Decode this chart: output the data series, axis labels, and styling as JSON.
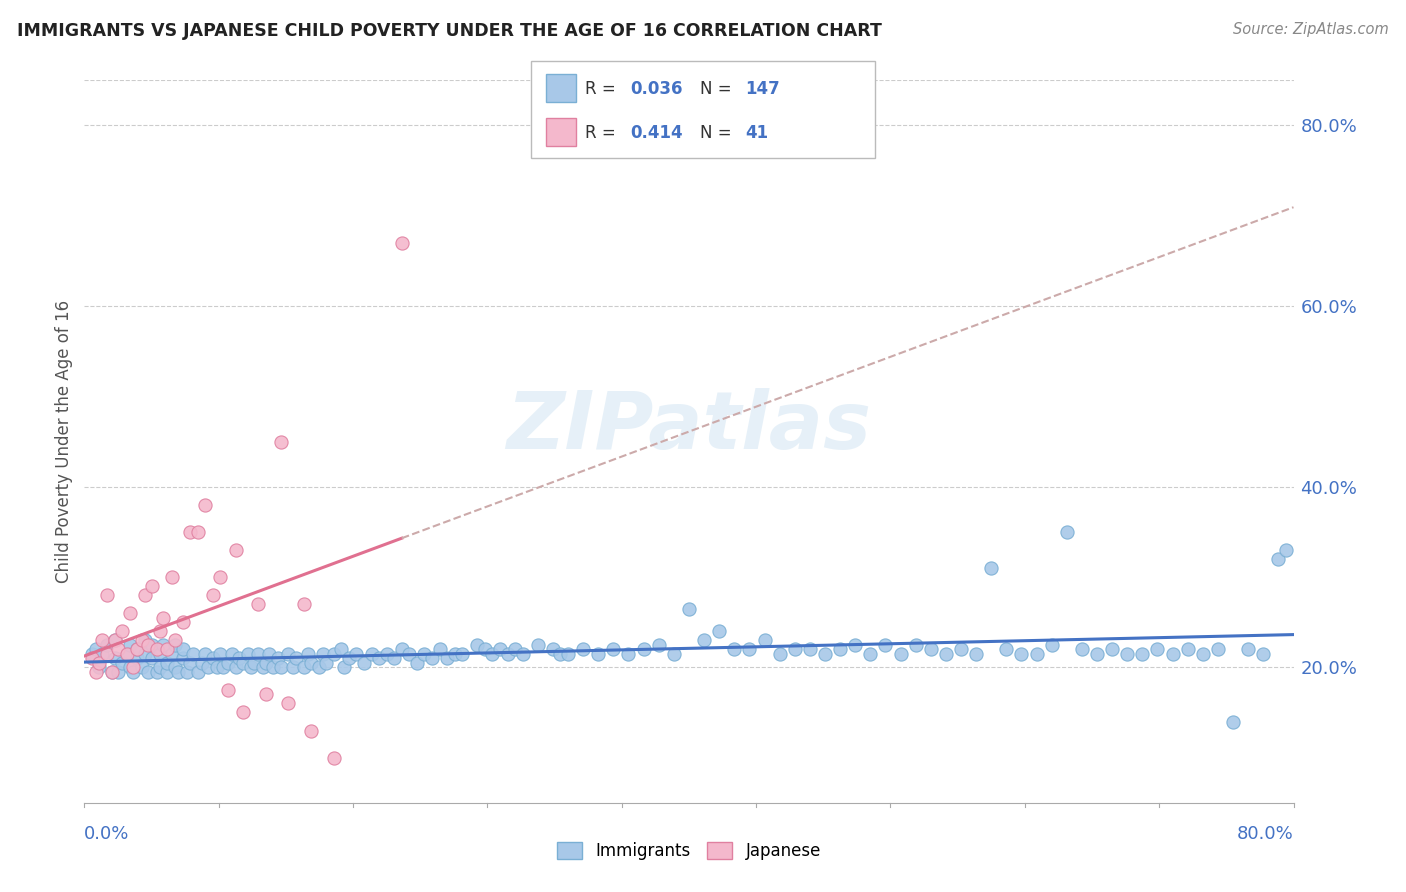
{
  "title": "IMMIGRANTS VS JAPANESE CHILD POVERTY UNDER THE AGE OF 16 CORRELATION CHART",
  "source": "Source: ZipAtlas.com",
  "ylabel": "Child Poverty Under the Age of 16",
  "ytick_labels": [
    "20.0%",
    "40.0%",
    "60.0%",
    "80.0%"
  ],
  "ytick_values": [
    0.2,
    0.4,
    0.6,
    0.8
  ],
  "xlim": [
    0.0,
    0.8
  ],
  "ylim": [
    0.05,
    0.85
  ],
  "immigrants_color": "#a8c8e8",
  "japanese_color": "#f4b8cc",
  "immigrants_edge": "#7aafd4",
  "japanese_edge": "#e080a0",
  "trend_immigrants_color": "#4472c4",
  "trend_japanese_color": "#e07090",
  "watermark": "ZIPatlas",
  "legend_R_immigrants": "0.036",
  "legend_N_immigrants": "147",
  "legend_R_japanese": "0.414",
  "legend_N_japanese": "41",
  "immigrants_x": [
    0.005,
    0.008,
    0.01,
    0.012,
    0.015,
    0.018,
    0.02,
    0.02,
    0.022,
    0.025,
    0.028,
    0.03,
    0.03,
    0.032,
    0.035,
    0.035,
    0.038,
    0.04,
    0.04,
    0.042,
    0.045,
    0.045,
    0.048,
    0.05,
    0.05,
    0.052,
    0.055,
    0.055,
    0.058,
    0.06,
    0.06,
    0.062,
    0.065,
    0.065,
    0.068,
    0.07,
    0.072,
    0.075,
    0.078,
    0.08,
    0.082,
    0.085,
    0.088,
    0.09,
    0.092,
    0.095,
    0.098,
    0.1,
    0.102,
    0.105,
    0.108,
    0.11,
    0.112,
    0.115,
    0.118,
    0.12,
    0.122,
    0.125,
    0.128,
    0.13,
    0.135,
    0.138,
    0.14,
    0.145,
    0.148,
    0.15,
    0.155,
    0.158,
    0.16,
    0.165,
    0.17,
    0.172,
    0.175,
    0.18,
    0.185,
    0.19,
    0.195,
    0.2,
    0.205,
    0.21,
    0.215,
    0.22,
    0.225,
    0.23,
    0.235,
    0.24,
    0.245,
    0.25,
    0.26,
    0.265,
    0.27,
    0.275,
    0.28,
    0.285,
    0.29,
    0.3,
    0.31,
    0.315,
    0.32,
    0.33,
    0.34,
    0.35,
    0.36,
    0.37,
    0.38,
    0.39,
    0.4,
    0.41,
    0.42,
    0.43,
    0.44,
    0.45,
    0.46,
    0.47,
    0.48,
    0.49,
    0.5,
    0.51,
    0.52,
    0.53,
    0.54,
    0.55,
    0.56,
    0.57,
    0.58,
    0.59,
    0.6,
    0.61,
    0.62,
    0.63,
    0.64,
    0.65,
    0.66,
    0.67,
    0.68,
    0.69,
    0.7,
    0.71,
    0.72,
    0.73,
    0.74,
    0.75,
    0.76,
    0.77,
    0.78,
    0.79,
    0.795
  ],
  "immigrants_y": [
    0.215,
    0.22,
    0.2,
    0.215,
    0.225,
    0.195,
    0.21,
    0.23,
    0.195,
    0.205,
    0.215,
    0.2,
    0.225,
    0.195,
    0.21,
    0.22,
    0.2,
    0.215,
    0.23,
    0.195,
    0.21,
    0.225,
    0.195,
    0.2,
    0.215,
    0.225,
    0.195,
    0.205,
    0.215,
    0.2,
    0.225,
    0.195,
    0.21,
    0.22,
    0.195,
    0.205,
    0.215,
    0.195,
    0.205,
    0.215,
    0.2,
    0.21,
    0.2,
    0.215,
    0.2,
    0.205,
    0.215,
    0.2,
    0.21,
    0.205,
    0.215,
    0.2,
    0.205,
    0.215,
    0.2,
    0.205,
    0.215,
    0.2,
    0.21,
    0.2,
    0.215,
    0.2,
    0.21,
    0.2,
    0.215,
    0.205,
    0.2,
    0.215,
    0.205,
    0.215,
    0.22,
    0.2,
    0.21,
    0.215,
    0.205,
    0.215,
    0.21,
    0.215,
    0.21,
    0.22,
    0.215,
    0.205,
    0.215,
    0.21,
    0.22,
    0.21,
    0.215,
    0.215,
    0.225,
    0.22,
    0.215,
    0.22,
    0.215,
    0.22,
    0.215,
    0.225,
    0.22,
    0.215,
    0.215,
    0.22,
    0.215,
    0.22,
    0.215,
    0.22,
    0.225,
    0.215,
    0.265,
    0.23,
    0.24,
    0.22,
    0.22,
    0.23,
    0.215,
    0.22,
    0.22,
    0.215,
    0.22,
    0.225,
    0.215,
    0.225,
    0.215,
    0.225,
    0.22,
    0.215,
    0.22,
    0.215,
    0.31,
    0.22,
    0.215,
    0.215,
    0.225,
    0.35,
    0.22,
    0.215,
    0.22,
    0.215,
    0.215,
    0.22,
    0.215,
    0.22,
    0.215,
    0.22,
    0.14,
    0.22,
    0.215,
    0.32,
    0.33
  ],
  "japanese_x": [
    0.005,
    0.008,
    0.01,
    0.012,
    0.015,
    0.015,
    0.018,
    0.02,
    0.022,
    0.025,
    0.028,
    0.03,
    0.032,
    0.035,
    0.038,
    0.04,
    0.042,
    0.045,
    0.048,
    0.05,
    0.052,
    0.055,
    0.058,
    0.06,
    0.065,
    0.07,
    0.075,
    0.08,
    0.085,
    0.09,
    0.095,
    0.1,
    0.105,
    0.115,
    0.12,
    0.13,
    0.135,
    0.145,
    0.15,
    0.165,
    0.21
  ],
  "japanese_y": [
    0.21,
    0.195,
    0.205,
    0.23,
    0.28,
    0.215,
    0.195,
    0.23,
    0.22,
    0.24,
    0.215,
    0.26,
    0.2,
    0.22,
    0.23,
    0.28,
    0.225,
    0.29,
    0.22,
    0.24,
    0.255,
    0.22,
    0.3,
    0.23,
    0.25,
    0.35,
    0.35,
    0.38,
    0.28,
    0.3,
    0.175,
    0.33,
    0.15,
    0.27,
    0.17,
    0.45,
    0.16,
    0.27,
    0.13,
    0.1,
    0.67
  ]
}
